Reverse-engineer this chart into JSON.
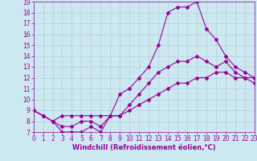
{
  "xlabel": "Windchill (Refroidissement éolien,°C)",
  "bg_color": "#cce8f0",
  "line_color": "#990099",
  "xmin": 0,
  "xmax": 23,
  "ymin": 7,
  "ymax": 19,
  "line1_x": [
    0,
    1,
    2,
    3,
    4,
    5,
    6,
    7,
    8,
    9,
    10,
    11,
    12,
    13,
    14,
    15,
    16,
    17,
    18,
    19,
    20,
    21,
    22,
    23
  ],
  "line1_y": [
    9.0,
    8.5,
    8.0,
    7.0,
    7.0,
    7.0,
    7.5,
    7.0,
    8.5,
    10.5,
    11.0,
    12.0,
    13.0,
    15.0,
    18.0,
    18.5,
    18.5,
    19.0,
    16.5,
    15.5,
    14.0,
    13.0,
    12.5,
    12.0
  ],
  "line2_x": [
    0,
    1,
    2,
    3,
    4,
    5,
    6,
    7,
    8,
    9,
    10,
    11,
    12,
    13,
    14,
    15,
    16,
    17,
    18,
    19,
    20,
    21,
    22,
    23
  ],
  "line2_y": [
    9.0,
    8.5,
    8.0,
    8.5,
    8.5,
    8.5,
    8.5,
    8.5,
    8.5,
    8.5,
    9.5,
    10.5,
    11.5,
    12.5,
    13.0,
    13.5,
    13.5,
    14.0,
    13.5,
    13.0,
    13.5,
    12.5,
    12.0,
    12.0
  ],
  "line3_x": [
    0,
    1,
    2,
    3,
    4,
    5,
    6,
    7,
    8,
    9,
    10,
    11,
    12,
    13,
    14,
    15,
    16,
    17,
    18,
    19,
    20,
    21,
    22,
    23
  ],
  "line3_y": [
    9.0,
    8.5,
    8.0,
    7.5,
    7.5,
    8.0,
    8.0,
    7.5,
    8.5,
    8.5,
    9.0,
    9.5,
    10.0,
    10.5,
    11.0,
    11.5,
    11.5,
    12.0,
    12.0,
    12.5,
    12.5,
    12.0,
    12.0,
    11.5
  ],
  "marker": "D",
  "markersize": 2,
  "linewidth": 0.8,
  "grid_color": "#b0c8d8",
  "axis_fontsize": 6,
  "tick_fontsize": 5.5
}
